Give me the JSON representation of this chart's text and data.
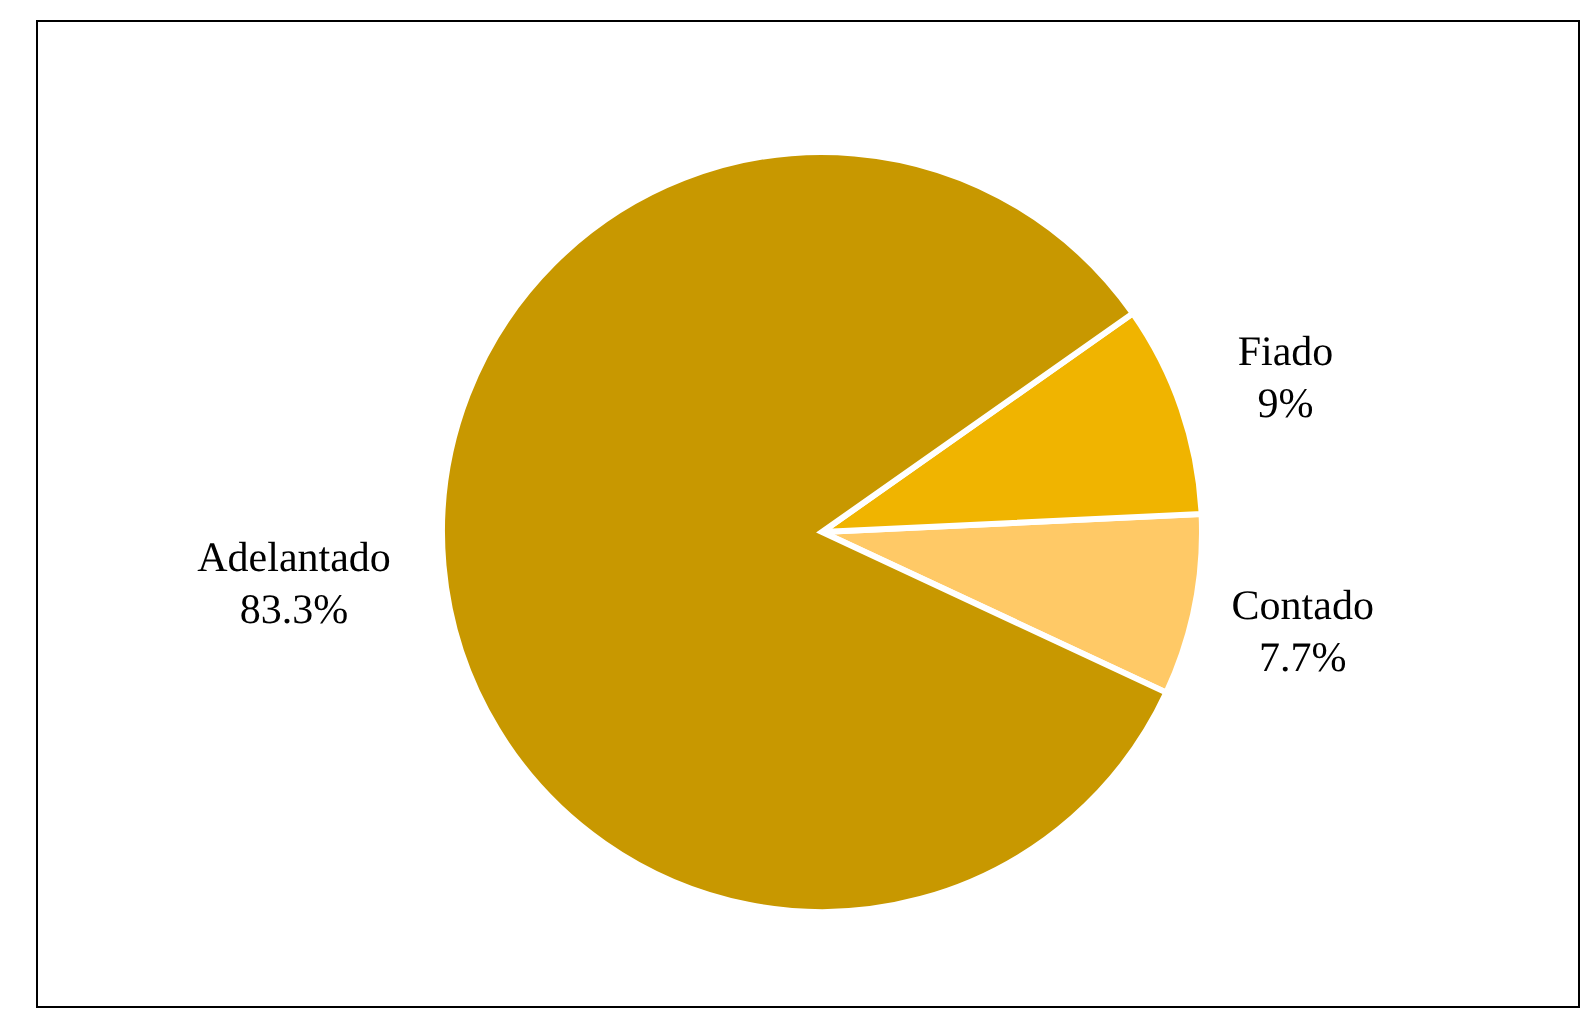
{
  "chart_data": {
    "type": "pie",
    "categories": [
      "Contado",
      "Fiado",
      "Adelantado"
    ],
    "values": [
      7.7,
      9,
      83.3
    ],
    "colors": [
      "#ffc966",
      "#f0b400",
      "#c89800"
    ],
    "value_labels": [
      "7.7%",
      "9%",
      "83.3%"
    ],
    "legend": false
  }
}
